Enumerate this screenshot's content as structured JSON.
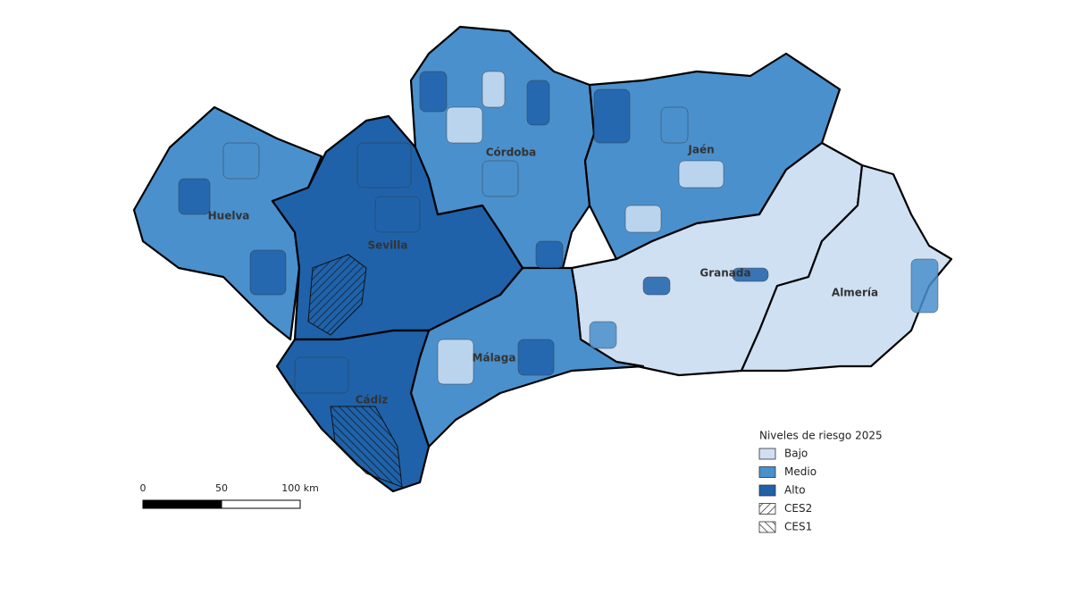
{
  "map": {
    "provinces": [
      {
        "label": "Huelva",
        "level": "Medio"
      },
      {
        "label": "Sevilla",
        "level": "Alto"
      },
      {
        "label": "Córdoba",
        "level": "Medio"
      },
      {
        "label": "Jaén",
        "level": "Medio"
      },
      {
        "label": "Granada",
        "level": "Bajo"
      },
      {
        "label": "Almería",
        "level": "Bajo"
      },
      {
        "label": "Málaga",
        "level": "Medio"
      },
      {
        "label": "Cádiz",
        "level": "Alto"
      }
    ],
    "legend": {
      "title": "Niveles de riesgo 2025",
      "items": [
        {
          "label": "Bajo",
          "color": "#cfe0f3"
        },
        {
          "label": "Medio",
          "color": "#4a90cc"
        },
        {
          "label": "Alto",
          "color": "#1f62aa"
        },
        {
          "label": "CES2",
          "pattern": "hatch-right"
        },
        {
          "label": "CES1",
          "pattern": "hatch-left"
        }
      ]
    },
    "scale_bar": {
      "labels": [
        "0",
        "50",
        "100 km"
      ]
    }
  }
}
